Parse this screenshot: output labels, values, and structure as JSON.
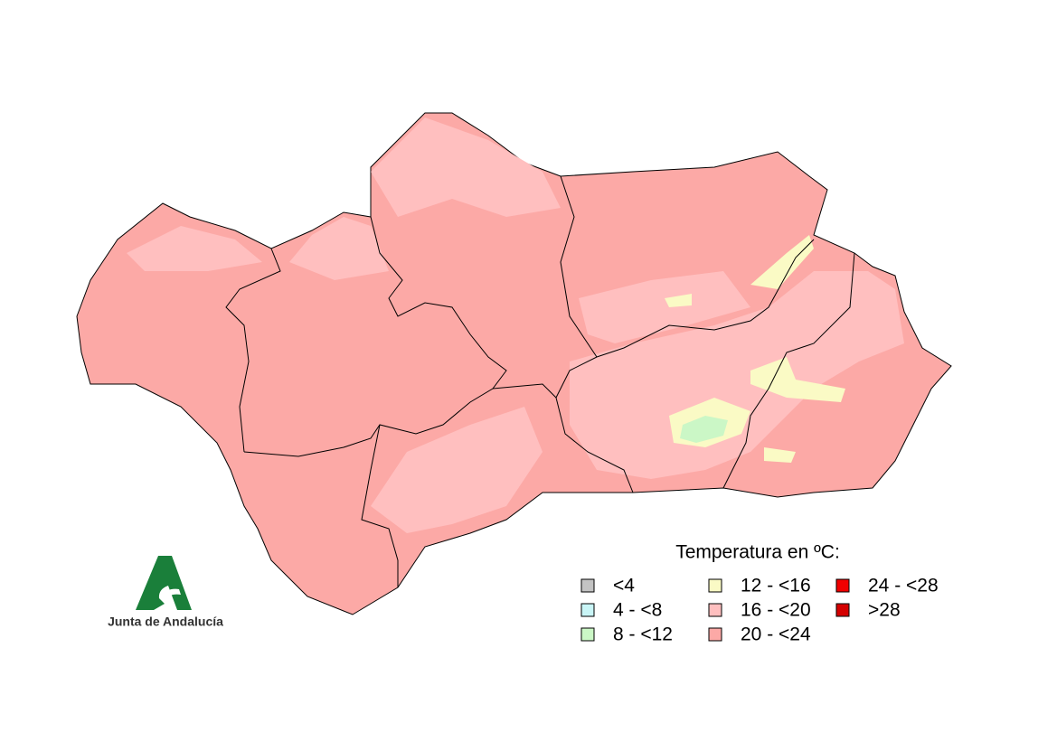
{
  "legend": {
    "title": "Temperatura en ºC:",
    "items": [
      {
        "label": "<4",
        "color": "#c3c3c3"
      },
      {
        "label": "4 - <8",
        "color": "#c9f5f6"
      },
      {
        "label": "8 - <12",
        "color": "#cbf7c6"
      },
      {
        "label": "12 - <16",
        "color": "#fafac5"
      },
      {
        "label": "16 - <20",
        "color": "#ffbfbf"
      },
      {
        "label": "20 - <24",
        "color": "#fca9a6"
      },
      {
        "label": "24 - <28",
        "color": "#f00000"
      },
      {
        "label": ">28",
        "color": "#d40000"
      }
    ]
  },
  "logo": {
    "text": "Junta de Andalucía"
  }
}
